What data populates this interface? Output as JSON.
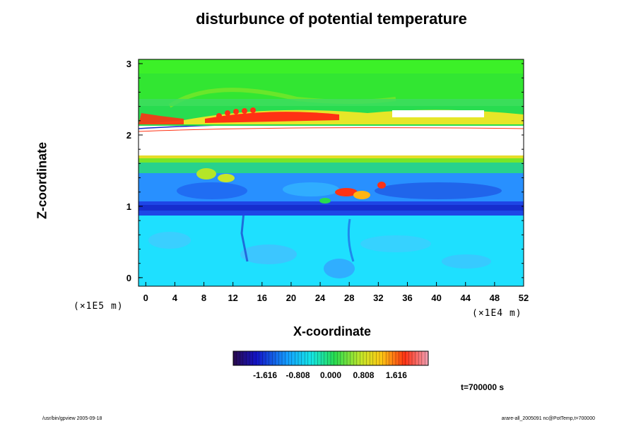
{
  "chart_data": {
    "type": "heatmap",
    "title": "disturbunce of potential temperature",
    "xlabel": "X-coordinate",
    "ylabel": "Z-coordinate",
    "x_unit": "(×1E4 m)",
    "y_unit": "(×1E5 m)",
    "x_ticks": [
      "0",
      "4",
      "8",
      "12",
      "16",
      "20",
      "24",
      "28",
      "32",
      "36",
      "40",
      "44",
      "48",
      "52"
    ],
    "y_ticks": [
      "0",
      "1",
      "2",
      "3"
    ],
    "xlim": [
      -1,
      52
    ],
    "ylim": [
      -0.12,
      3.06
    ],
    "colorbar": {
      "ticks": [
        "-1.616",
        "-0.808",
        "0.000",
        "0.808",
        "1.616"
      ],
      "range": [
        -2.4,
        2.4
      ],
      "colormap": "rainbow"
    },
    "regions": [
      {
        "z": [
          -0.12,
          0.95
        ],
        "value": -0.7,
        "desc": "lower layer, cyan"
      },
      {
        "z": [
          0.95,
          1.1
        ],
        "value": -1.5,
        "desc": "cold band, blue"
      },
      {
        "z": [
          1.1,
          1.45
        ],
        "value": -1.1,
        "desc": "blue/cyan mixing layer"
      },
      {
        "z": [
          1.45,
          1.72
        ],
        "value": 0.0,
        "desc": "green/yellow"
      },
      {
        "z": [
          1.72,
          2.15
        ],
        "value": null,
        "desc": "white, no data"
      },
      {
        "z": [
          2.15,
          2.45
        ],
        "value": 1.2,
        "desc": "red/orange wave band"
      },
      {
        "z": [
          2.45,
          3.06
        ],
        "value": 0.1,
        "desc": "upper layer, green"
      }
    ]
  },
  "time_label": "t=700000 s",
  "footer_left": "/usr/bin/gpview 2005-09-18",
  "footer_right": "arare-all_2005091 nc@PotTemp,t=700000",
  "colors": {
    "cold": "#1428c8",
    "cyan": "#14d2ff",
    "green": "#28e650",
    "yellow": "#e6e628",
    "red": "#ff2814",
    "white": "#ffffff"
  }
}
